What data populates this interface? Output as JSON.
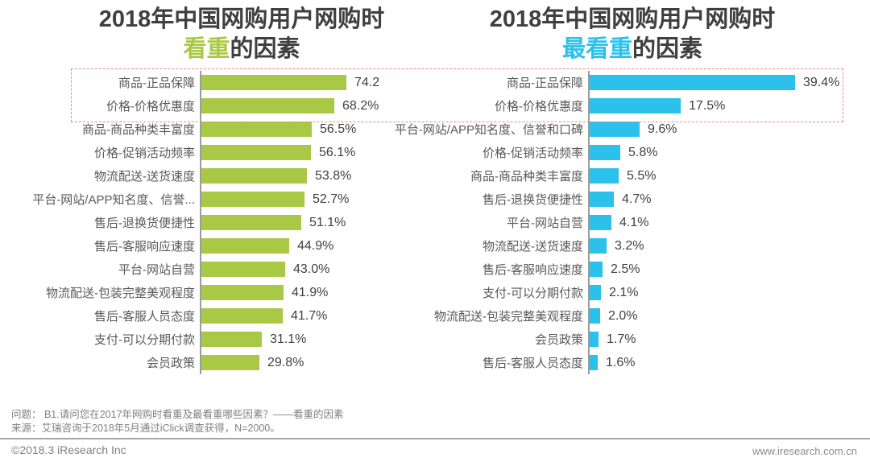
{
  "chart_data": [
    {
      "type": "bar",
      "orientation": "horizontal",
      "title_line1": "2018年中国网购用户网购时",
      "title_highlight": "看重",
      "title_suffix": "的因素",
      "bar_color": "#a8c846",
      "highlight_color": "#a8c846",
      "categories": [
        "商品-正品保障",
        "价格-价格优惠度",
        "商品-商品种类丰富度",
        "价格-促销活动频率",
        "物流配送-送货速度",
        "平台-网站/APP知名度、信誉...",
        "售后-退换货便捷性",
        "售后-客服响应速度",
        "平台-网站自营",
        "物流配送-包装完整美观程度",
        "售后-客服人员态度",
        "支付-可以分期付款",
        "会员政策"
      ],
      "values": [
        74.2,
        68.2,
        56.5,
        56.1,
        53.8,
        52.7,
        51.1,
        44.9,
        43.0,
        41.9,
        41.7,
        31.1,
        29.8
      ],
      "value_labels": [
        "74.2",
        "68.2%",
        "56.5%",
        "56.1%",
        "53.8%",
        "52.7%",
        "51.1%",
        "44.9%",
        "43.0%",
        "41.9%",
        "41.7%",
        "31.1%",
        "29.8%"
      ],
      "unit": "%",
      "xlim": [
        0,
        80
      ],
      "grid": false,
      "legend": "none"
    },
    {
      "type": "bar",
      "orientation": "horizontal",
      "title_line1": "2018年中国网购用户网购时",
      "title_highlight": "最看重",
      "title_suffix": "的因素",
      "bar_color": "#2bc1ea",
      "highlight_color": "#2bc1ea",
      "categories": [
        "商品-正品保障",
        "价格-价格优惠度",
        "平台-网站/APP知名度、信誉和口碑",
        "价格-促销活动频率",
        "商品-商品种类丰富度",
        "售后-退换货便捷性",
        "平台-网站自营",
        "物流配送-送货速度",
        "售后-客服响应速度",
        "支付-可以分期付款",
        "物流配送-包装完整美观程度",
        "会员政策",
        "售后-客服人员态度"
      ],
      "values": [
        39.4,
        17.5,
        9.6,
        5.8,
        5.5,
        4.7,
        4.1,
        3.2,
        2.5,
        2.1,
        2.0,
        1.7,
        1.6
      ],
      "value_labels": [
        "39.4%",
        "17.5%",
        "9.6%",
        "5.8%",
        "5.5%",
        "4.7%",
        "4.1%",
        "3.2%",
        "2.5%",
        "2.1%",
        "2.0%",
        "1.7%",
        "1.6%"
      ],
      "unit": "%",
      "xlim": [
        0,
        45
      ],
      "grid": false,
      "legend": "none"
    }
  ],
  "annotation": {
    "highlight_box": {
      "rows_covered": 2,
      "border_color": "#e98b80",
      "description": "dashed box emphasizing the top two factors across both charts"
    }
  },
  "footnote": {
    "question": "问题：  B1.请问您在2017年网购时看重及最看重哪些因素？——看重的因素",
    "source": "来源：艾瑞咨询于2018年5月通过iClick调查获得，N=2000。"
  },
  "footer": {
    "copyright": "©2018.3 iResearch Inc",
    "website": "www.iresearch.com.cn"
  }
}
